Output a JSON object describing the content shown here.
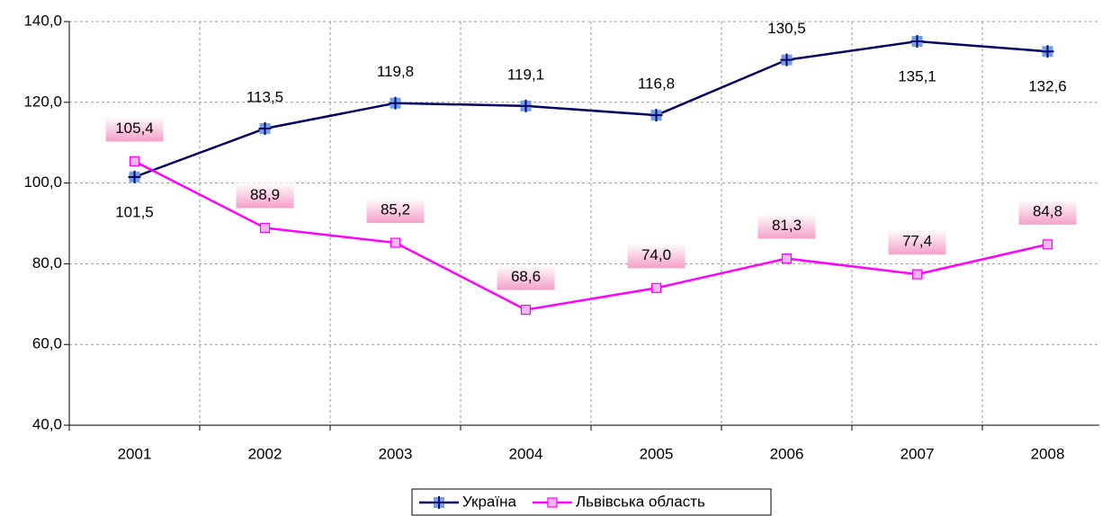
{
  "chart_data": {
    "type": "line",
    "categories": [
      "2001",
      "2002",
      "2003",
      "2004",
      "2005",
      "2006",
      "2007",
      "2008"
    ],
    "series": [
      {
        "name": "Україна",
        "color": "#000066",
        "marker_color": "#6f9fe8",
        "values": [
          101.5,
          113.5,
          119.8,
          119.1,
          116.8,
          130.5,
          135.1,
          132.6
        ],
        "value_labels": [
          "101,5",
          "113,5",
          "119,8",
          "119,1",
          "116,8",
          "130,5",
          "135,1",
          "132,6"
        ]
      },
      {
        "name": "Львівська область",
        "color": "#ff00ff",
        "marker_color": "#f0b8f0",
        "values": [
          105.4,
          88.9,
          85.2,
          68.6,
          74.0,
          81.3,
          77.4,
          84.8
        ],
        "value_labels": [
          "105,4",
          "88,9",
          "85,2",
          "68,6",
          "74,0",
          "81,3",
          "77,4",
          "84,8"
        ]
      }
    ],
    "ylim": [
      40,
      140
    ],
    "yticks": [
      {
        "value": 40,
        "label": "40,0"
      },
      {
        "value": 60,
        "label": "60,0"
      },
      {
        "value": 80,
        "label": "80,0"
      },
      {
        "value": 100,
        "label": "100,0"
      },
      {
        "value": 120,
        "label": "120,0"
      },
      {
        "value": 140,
        "label": "140,0"
      }
    ],
    "grid": true,
    "legend": "bottom"
  }
}
